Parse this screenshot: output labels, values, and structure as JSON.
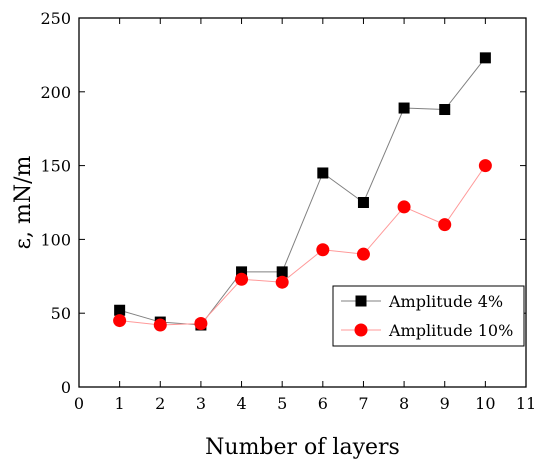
{
  "chart_data": {
    "type": "line",
    "xlabel": "Number of layers",
    "ylabel": "ε, mN/m",
    "xlim": [
      0,
      11
    ],
    "ylim": [
      0,
      250
    ],
    "xticks": [
      "0",
      "1",
      "2",
      "3",
      "4",
      "5",
      "6",
      "7",
      "8",
      "9",
      "10",
      "11"
    ],
    "yticks": [
      "0",
      "50",
      "100",
      "150",
      "200",
      "250"
    ],
    "grid": false,
    "legend_position": "lower-right",
    "series": [
      {
        "name": "Amplitude 4%",
        "marker": "square",
        "color": "#000000",
        "line_color": "#808080",
        "x": [
          1,
          2,
          3,
          4,
          5,
          6,
          7,
          8,
          9,
          10
        ],
        "y": [
          52,
          44,
          42,
          78,
          78,
          145,
          125,
          189,
          188,
          223
        ]
      },
      {
        "name": "Amplitude 10%",
        "marker": "circle",
        "color": "#ff0000",
        "line_color": "#ff9999",
        "x": [
          1,
          2,
          3,
          4,
          5,
          6,
          7,
          8,
          9,
          10
        ],
        "y": [
          45,
          42,
          43,
          73,
          71,
          93,
          90,
          122,
          110,
          150
        ]
      }
    ]
  }
}
